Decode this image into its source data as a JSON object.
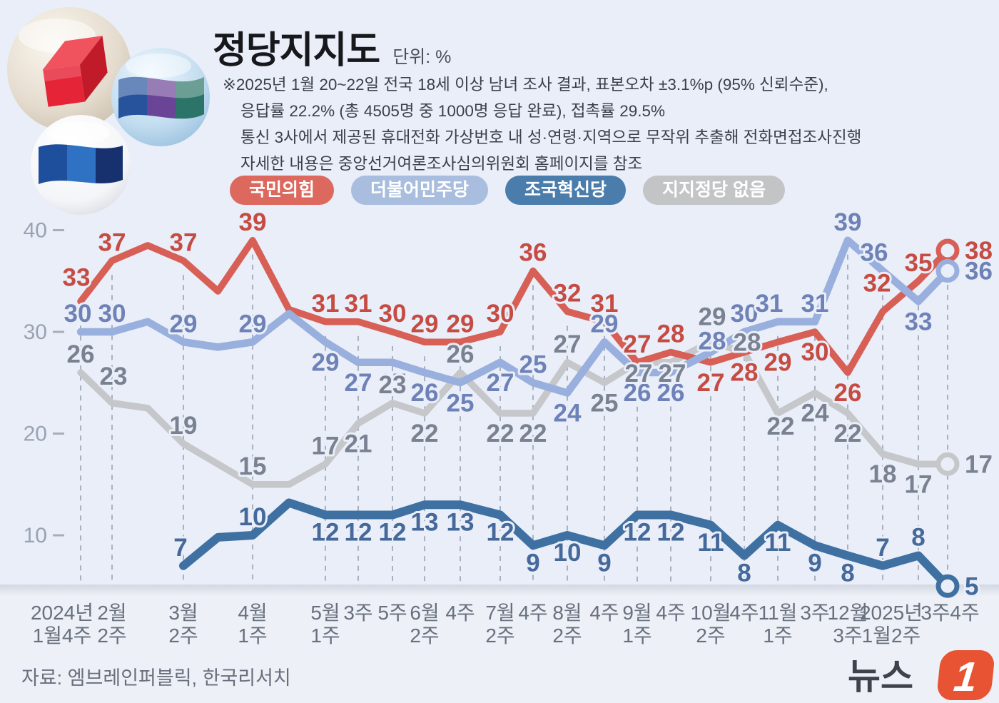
{
  "header": {
    "title": "정당지지도",
    "unit_label": "단위: %",
    "notes": [
      "※2025년 1월 20~22일 전국 18세 이상 남녀 조사 결과, 표본오차 ±3.1%p (95% 신뢰수준),",
      "응답률 22.2% (총 4505명 중 1000명 응답 완료), 접촉률 29.5%",
      "통신 3사에서 제공된 휴대전화 가상번호 내 성·연령·지역으로 무작위 추출해 전화면접조사진행",
      "자세한 내용은 중앙선거여론조사심의위원회 홈페이지를 참조"
    ]
  },
  "legend": [
    {
      "label": "국민의힘",
      "color": "#dc685e"
    },
    {
      "label": "더불어민주당",
      "color": "#a9bddf"
    },
    {
      "label": "조국혁신당",
      "color": "#4b7dac"
    },
    {
      "label": "지지정당 없음",
      "color": "#c3c4c6"
    }
  ],
  "chart_data": {
    "type": "line",
    "unit": "%",
    "title": "정당지지도",
    "grid": "dashed-vertical-per-tick",
    "legend_position": "top",
    "y_axis": {
      "ticks": [
        40,
        30,
        20,
        10
      ],
      "range": [
        0,
        43
      ]
    },
    "x_labels": [
      [
        "2024년",
        "1월4주"
      ],
      [
        "2월",
        "2주"
      ],
      [
        "3월",
        "2주"
      ],
      [
        "4월",
        "1주"
      ],
      [
        "5월",
        "1주"
      ],
      [
        "3주"
      ],
      [
        "5주"
      ],
      [
        "6월",
        "2주"
      ],
      [
        "4주"
      ],
      [
        "7월",
        "2주"
      ],
      [
        "4주"
      ],
      [
        "8월",
        "2주"
      ],
      [
        "4주"
      ],
      [
        "9월",
        "1주"
      ],
      [
        "4주"
      ],
      [
        "10월",
        "2주"
      ],
      [
        "4주"
      ],
      [
        "11월",
        "1주"
      ],
      [
        "3주"
      ],
      [
        "12월",
        "3주"
      ],
      [
        "2025년",
        "1월2주"
      ],
      [
        "3주"
      ],
      [
        "4주"
      ]
    ],
    "series": [
      {
        "name": "국민의힘",
        "color": "#d75f55",
        "label_color": "#c64b42",
        "values": [
          33,
          37,
          37,
          39,
          31,
          31,
          30,
          29,
          29,
          30,
          36,
          32,
          31,
          27,
          28,
          27,
          28,
          29,
          30,
          26,
          32,
          35,
          38
        ]
      },
      {
        "name": "더불어민주당",
        "color": "#99afdd",
        "label_color": "#6e82b8",
        "values": [
          30,
          30,
          29,
          29,
          29,
          27,
          27,
          26,
          25,
          27,
          25,
          24,
          29,
          26,
          26,
          28,
          30,
          31,
          31,
          39,
          36,
          33,
          36
        ]
      },
      {
        "name": "지지정당 없음",
        "color": "#c6c7ca",
        "label_color": "#7a8191",
        "values": [
          26,
          23,
          19,
          15,
          17,
          21,
          23,
          22,
          26,
          22,
          22,
          27,
          25,
          27,
          27,
          29,
          28,
          22,
          24,
          22,
          18,
          17,
          17
        ]
      },
      {
        "name": "조국혁신당",
        "color": "#3f70a2",
        "label_color": "#44699a",
        "values": [
          null,
          null,
          7,
          10,
          12,
          12,
          12,
          13,
          13,
          12,
          9,
          10,
          9,
          12,
          12,
          11,
          8,
          11,
          9,
          8,
          7,
          8,
          5
        ]
      }
    ],
    "unlabeled_points": {
      "국민의힘": [
        [
          1.5,
          38.5
        ],
        [
          2.5,
          34
        ],
        [
          3.5,
          32.2
        ]
      ],
      "더불어민주당": [
        [
          1.5,
          31
        ],
        [
          2.5,
          28.5
        ],
        [
          3.5,
          31.8
        ]
      ],
      "지지정당 없음": [
        [
          1.5,
          22.5
        ],
        [
          2.5,
          17
        ],
        [
          3.5,
          15
        ]
      ],
      "조국혁신당": [
        [
          2.5,
          9.8
        ],
        [
          3.5,
          13.2
        ]
      ]
    }
  },
  "footer": {
    "source": "자료: 엠브레인퍼블릭, 한국리서치",
    "logo_text": "뉴스",
    "logo_number": "1"
  }
}
